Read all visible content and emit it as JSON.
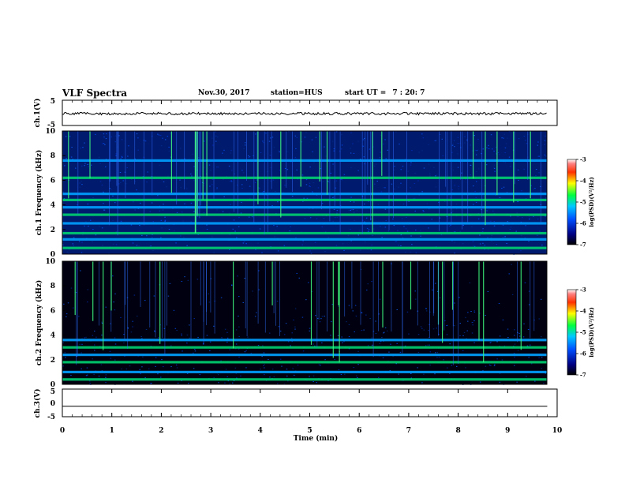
{
  "header": {
    "title": "VLF Spectra",
    "date": "Nov.30, 2017",
    "station": "station=HUS",
    "start_label": "start UT =",
    "start_time": "7 : 20: 7"
  },
  "colorbar_label": "log(PSD)(V²/Hz)",
  "chart_data": [
    {
      "type": "line",
      "panel": "ch1-waveform",
      "ylabel": "ch.1(V)",
      "ylim": [
        -5,
        5
      ],
      "y_ticks": [
        "5",
        "-5"
      ],
      "x": [
        0,
        9.8
      ],
      "values": [
        -0.3,
        -0.3
      ],
      "series_color": "#000000"
    },
    {
      "type": "heatmap",
      "panel": "ch1-spectrogram",
      "ylabel": "ch.1  Frequency (kHz)",
      "xlim": [
        0,
        9.8
      ],
      "ylim": [
        0,
        10
      ],
      "y_ticks": [
        "0",
        "2",
        "4",
        "6",
        "8",
        "10"
      ],
      "bands_khz": [
        0.5,
        1.2,
        1.7,
        2.5,
        3.2,
        3.8,
        4.4,
        4.9,
        6.2,
        7.6
      ],
      "colorbar": {
        "range": [
          -7,
          -3
        ],
        "ticks": [
          "-3",
          "-4",
          "-5",
          "-6",
          "-7"
        ]
      }
    },
    {
      "type": "heatmap",
      "panel": "ch2-spectrogram",
      "ylabel": "ch.2  Frequency (kHz)",
      "xlim": [
        0,
        9.8
      ],
      "ylim": [
        0,
        10
      ],
      "y_ticks": [
        "0",
        "2",
        "4",
        "6",
        "8",
        "10"
      ],
      "bands_khz": [
        0.4,
        1.0,
        1.8,
        2.4,
        3.0,
        3.6
      ],
      "colorbar": {
        "range": [
          -7,
          -3
        ],
        "ticks": [
          "-3",
          "-4",
          "-5",
          "-6",
          "-7"
        ]
      }
    },
    {
      "type": "line",
      "panel": "ch3-waveform",
      "ylabel": "ch.3(V)",
      "ylim": [
        -5,
        5
      ],
      "y_ticks": [
        "5",
        "0",
        "-5"
      ],
      "x": [
        0,
        9.8
      ],
      "values": [
        -1.2,
        -1.2
      ],
      "series_color": "#000000"
    }
  ],
  "x_axis": {
    "label": "Time (min)",
    "ticks": [
      "0",
      "1",
      "2",
      "3",
      "4",
      "5",
      "6",
      "7",
      "8",
      "9",
      "10"
    ],
    "range": [
      0,
      10
    ]
  }
}
